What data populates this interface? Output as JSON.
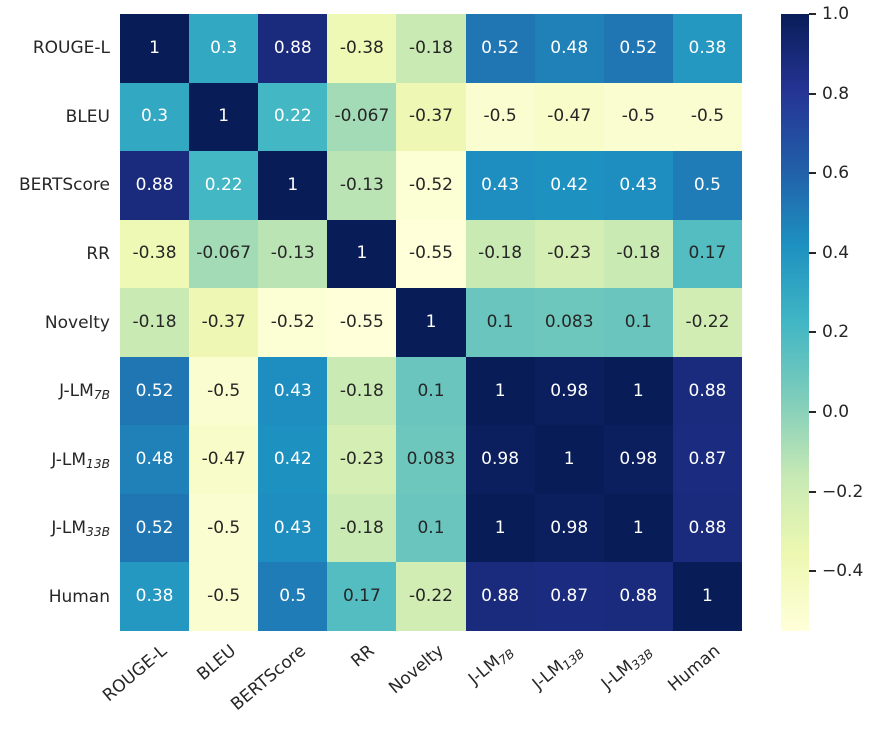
{
  "chart_data": {
    "type": "heatmap",
    "title": "",
    "xlabel": "",
    "ylabel": "",
    "grid": false,
    "legend_position": "colorbar-right",
    "labels": [
      "ROUGE-L",
      "BLEU",
      "BERTScore",
      "RR",
      "Novelty",
      "J-LM_{7B}",
      "J-LM_{13B}",
      "J-LM_{33B}",
      "Human"
    ],
    "matrix": [
      [
        "1",
        "0.3",
        "0.88",
        "-0.38",
        "-0.18",
        "0.52",
        "0.48",
        "0.52",
        "0.38"
      ],
      [
        "0.3",
        "1",
        "0.22",
        "-0.067",
        "-0.37",
        "-0.5",
        "-0.47",
        "-0.5",
        "-0.5"
      ],
      [
        "0.88",
        "0.22",
        "1",
        "-0.13",
        "-0.52",
        "0.43",
        "0.42",
        "0.43",
        "0.5"
      ],
      [
        "-0.38",
        "-0.067",
        "-0.13",
        "1",
        "-0.55",
        "-0.18",
        "-0.23",
        "-0.18",
        "0.17"
      ],
      [
        "-0.18",
        "-0.37",
        "-0.52",
        "-0.55",
        "1",
        "0.1",
        "0.083",
        "0.1",
        "-0.22"
      ],
      [
        "0.52",
        "-0.5",
        "0.43",
        "-0.18",
        "0.1",
        "1",
        "0.98",
        "1",
        "0.88"
      ],
      [
        "0.48",
        "-0.47",
        "0.42",
        "-0.23",
        "0.083",
        "0.98",
        "1",
        "0.98",
        "0.87"
      ],
      [
        "0.52",
        "-0.5",
        "0.43",
        "-0.18",
        "0.1",
        "1",
        "0.98",
        "1",
        "0.88"
      ],
      [
        "0.38",
        "-0.5",
        "0.5",
        "0.17",
        "-0.22",
        "0.88",
        "0.87",
        "0.88",
        "1"
      ]
    ],
    "vmin": -0.55,
    "vmax": 1.0,
    "colormap": {
      "name": "YlGnBu",
      "stops": [
        "#ffffd9",
        "#edf8b1",
        "#c7e9b4",
        "#7fcdbb",
        "#41b6c4",
        "#1d91c0",
        "#225ea8",
        "#253494",
        "#081d58"
      ]
    },
    "annotation_text_colors": {
      "light": "#ffffff",
      "dark": "#262626"
    },
    "axis_label_color": "#262626",
    "colorbar_ticks": [
      {
        "value": 1.0,
        "label": "1.0"
      },
      {
        "value": 0.8,
        "label": "0.8"
      },
      {
        "value": 0.6,
        "label": "0.6"
      },
      {
        "value": 0.4,
        "label": "0.4"
      },
      {
        "value": 0.2,
        "label": "0.2"
      },
      {
        "value": 0.0,
        "label": "0.0"
      },
      {
        "value": -0.2,
        "label": "−0.2"
      },
      {
        "value": -0.4,
        "label": "−0.4"
      }
    ]
  }
}
